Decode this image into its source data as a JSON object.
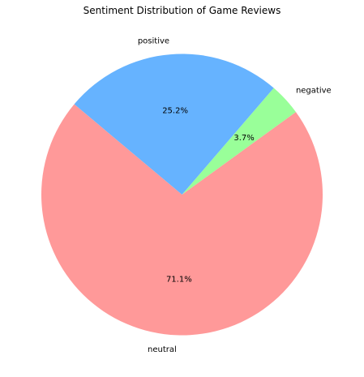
{
  "chart_data": {
    "type": "pie",
    "title": "Sentiment Distribution of Game Reviews",
    "slices": [
      {
        "label": "neutral",
        "value": 71.1,
        "pct_label": "71.1%",
        "color": "#ff9999"
      },
      {
        "label": "negative",
        "value": 3.7,
        "pct_label": "3.7%",
        "color": "#99ff99"
      },
      {
        "label": "positive",
        "value": 25.2,
        "pct_label": "25.2%",
        "color": "#66b3ff"
      }
    ],
    "start_angle_deg": 140,
    "direction": "counterclockwise"
  }
}
